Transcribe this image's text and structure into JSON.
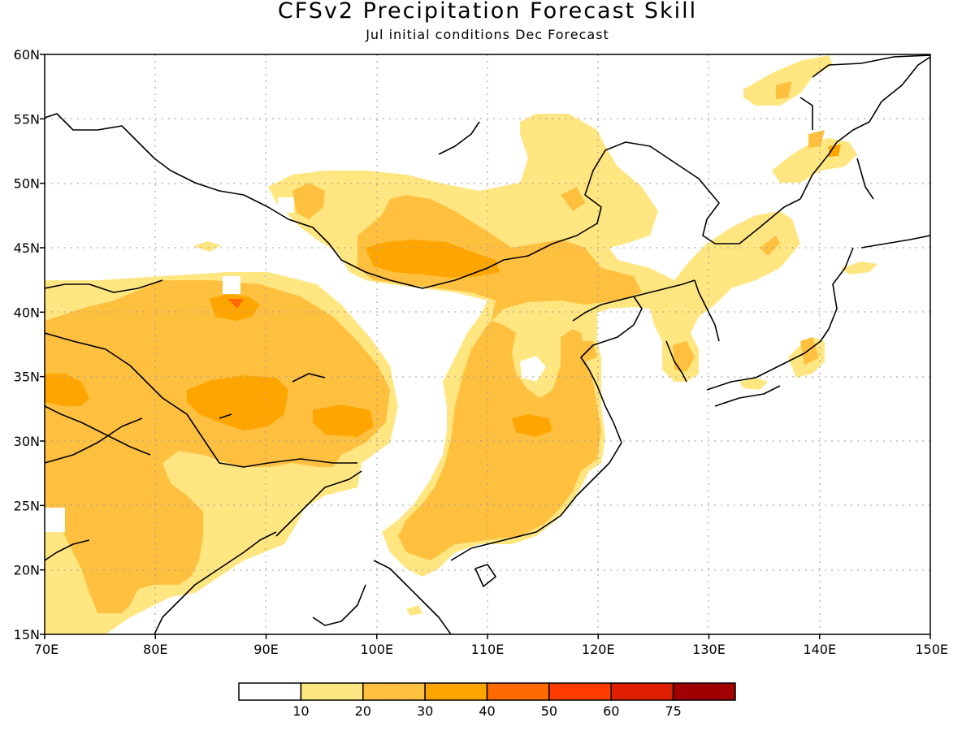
{
  "title": "CFSv2 Precipitation Forecast Skill",
  "subtitle": "Jul initial conditions  Dec Forecast",
  "lat_labels": [
    "60N",
    "55N",
    "50N",
    "45N",
    "40N",
    "35N",
    "30N",
    "25N",
    "20N",
    "15N"
  ],
  "lon_labels": [
    "70E",
    "80E",
    "90E",
    "100E",
    "110E",
    "120E",
    "130E",
    "140E",
    "150E"
  ],
  "legend": {
    "labels": [
      "10",
      "20",
      "30",
      "40",
      "50",
      "60",
      "75"
    ],
    "colors": [
      "#ffffff",
      "#ffe680",
      "#ffc040",
      "#ffa500",
      "#ff6a00",
      "#ff3c00",
      "#e01e00",
      "#a00000"
    ]
  },
  "map_colors": {
    "level1": "#ffe680",
    "level2": "#ffc040",
    "level3": "#ffa500",
    "level4": "#ff6a00"
  },
  "map_extent": {
    "lon": [
      70,
      150
    ],
    "lat": [
      15,
      60
    ]
  }
}
